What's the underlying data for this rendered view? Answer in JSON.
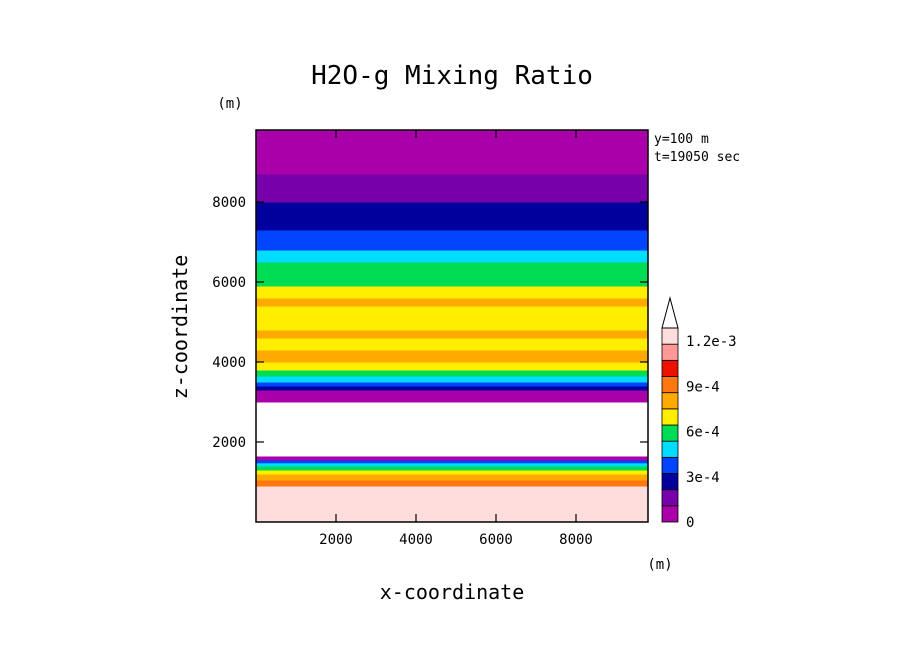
{
  "chart_data": {
    "type": "heatmap",
    "title": "H2O-g Mixing Ratio",
    "xlabel": "x-coordinate",
    "ylabel": "z-coordinate",
    "x_unit": "(m)",
    "y_unit": "(m)",
    "xlim": [
      0,
      9800
    ],
    "ylim": [
      0,
      9800
    ],
    "x_ticks": [
      "2000",
      "4000",
      "6000",
      "8000"
    ],
    "y_ticks": [
      "2000",
      "4000",
      "6000",
      "8000"
    ],
    "x_tick_values": [
      2000,
      4000,
      6000,
      8000
    ],
    "y_tick_values": [
      2000,
      4000,
      6000,
      8000
    ],
    "annotations": [
      "y=100 m",
      "t=19050 sec"
    ],
    "colorbar": {
      "levels": [
        0,
        0.00015,
        0.0003,
        0.00045,
        0.0006,
        0.00075,
        0.0009,
        0.00105,
        0.0012
      ],
      "colors": [
        "#aa00aa",
        "#7700aa",
        "#00009c",
        "#0044ff",
        "#00ddff",
        "#00dd55",
        "#ffee00",
        "#ffaa00",
        "#ff7711",
        "#ee1100",
        "#ff9999",
        "#ffdddd"
      ],
      "tick_labels": [
        "0",
        "3e-4",
        "6e-4",
        "9e-4",
        "1.2e-3"
      ],
      "tick_values": [
        0,
        0.0003,
        0.0006,
        0.0009,
        0.0012
      ]
    },
    "bands": [
      {
        "z_bottom": 100,
        "z_top": 900,
        "value": 0.00125,
        "color": "#ffdddd"
      },
      {
        "z_bottom": 900,
        "z_top": 1050,
        "value": 0.0011,
        "color": "#ff7711"
      },
      {
        "z_bottom": 1050,
        "z_top": 1200,
        "value": 0.0009,
        "color": "#ffaa00"
      },
      {
        "z_bottom": 1200,
        "z_top": 1300,
        "value": 0.0008,
        "color": "#ffee00"
      },
      {
        "z_bottom": 1300,
        "z_top": 1400,
        "value": 0.0006,
        "color": "#00dd55"
      },
      {
        "z_bottom": 1400,
        "z_top": 1480,
        "value": 0.00045,
        "color": "#00ddff"
      },
      {
        "z_bottom": 1480,
        "z_top": 1550,
        "value": 0.0003,
        "color": "#0044ff"
      },
      {
        "z_bottom": 1550,
        "z_top": 1650,
        "value": 0.0001,
        "color": "#aa00aa"
      },
      {
        "z_bottom": 1650,
        "z_top": 3000,
        "value": null,
        "color": "#ffffff"
      },
      {
        "z_bottom": 3000,
        "z_top": 3300,
        "value": 0.0001,
        "color": "#aa00aa"
      },
      {
        "z_bottom": 3300,
        "z_top": 3400,
        "value": 0.00025,
        "color": "#00009c"
      },
      {
        "z_bottom": 3400,
        "z_top": 3500,
        "value": 0.0004,
        "color": "#0044ff"
      },
      {
        "z_bottom": 3500,
        "z_top": 3650,
        "value": 0.0005,
        "color": "#00ddff"
      },
      {
        "z_bottom": 3650,
        "z_top": 3800,
        "value": 0.0006,
        "color": "#00dd55"
      },
      {
        "z_bottom": 3800,
        "z_top": 4000,
        "value": 0.0008,
        "color": "#ffee00"
      },
      {
        "z_bottom": 4000,
        "z_top": 4300,
        "value": 0.0009,
        "color": "#ffaa00"
      },
      {
        "z_bottom": 4300,
        "z_top": 4600,
        "value": 0.0008,
        "color": "#ffee00"
      },
      {
        "z_bottom": 4600,
        "z_top": 4800,
        "value": 0.0009,
        "color": "#ffaa00"
      },
      {
        "z_bottom": 4800,
        "z_top": 5400,
        "value": 0.0008,
        "color": "#ffee00"
      },
      {
        "z_bottom": 5400,
        "z_top": 5600,
        "value": 0.0009,
        "color": "#ffaa00"
      },
      {
        "z_bottom": 5600,
        "z_top": 5900,
        "value": 0.0008,
        "color": "#ffee00"
      },
      {
        "z_bottom": 5900,
        "z_top": 6500,
        "value": 0.0006,
        "color": "#00dd55"
      },
      {
        "z_bottom": 6500,
        "z_top": 6800,
        "value": 0.0005,
        "color": "#00ddff"
      },
      {
        "z_bottom": 6800,
        "z_top": 7300,
        "value": 0.0004,
        "color": "#0044ff"
      },
      {
        "z_bottom": 7300,
        "z_top": 8000,
        "value": 0.00025,
        "color": "#00009c"
      },
      {
        "z_bottom": 8000,
        "z_top": 8700,
        "value": 0.00015,
        "color": "#7700aa"
      },
      {
        "z_bottom": 8700,
        "z_top": 9800,
        "value": 5e-05,
        "color": "#aa00aa"
      }
    ]
  }
}
